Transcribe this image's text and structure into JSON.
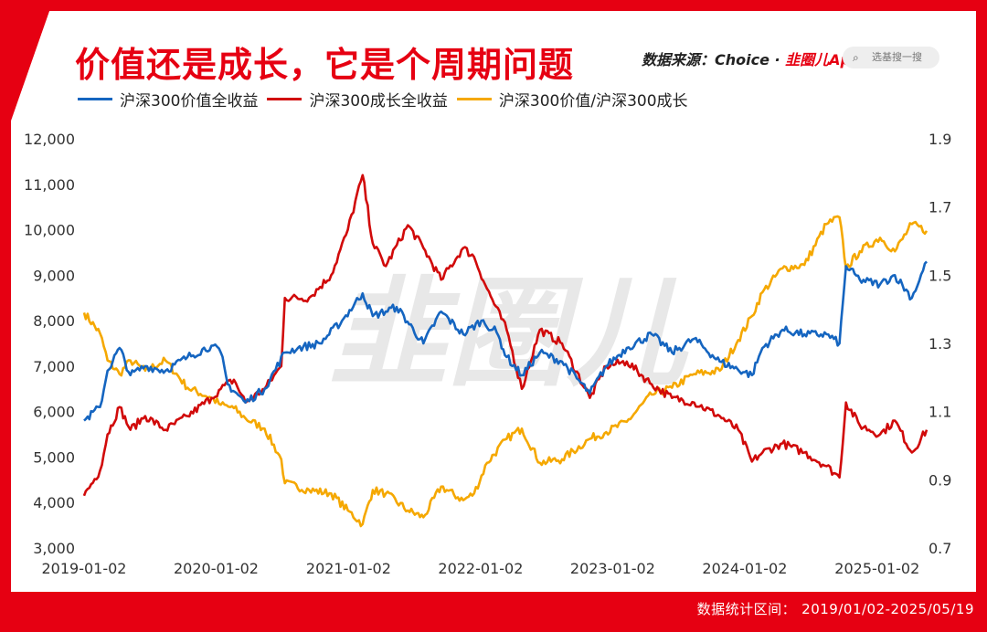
{
  "header": {
    "title": "价值还是成长，它是个周期问题",
    "source_prefix": "数据来源：Choice · ",
    "brand": "韭圈儿App",
    "search_placeholder": "选基搜一搜"
  },
  "footer": {
    "label": "数据统计区间：",
    "range": "2019/01/02-2025/05/19"
  },
  "watermark": "韭圈儿",
  "colors": {
    "background": "#e60012",
    "value_series": "#1565c0",
    "growth_series": "#d10a0a",
    "ratio_series": "#f5a800"
  },
  "chart_data": {
    "type": "line",
    "x_ticks": [
      "2019-01-02",
      "2020-01-02",
      "2021-01-02",
      "2022-01-02",
      "2023-01-02",
      "2024-01-02",
      "2025-01-02"
    ],
    "y_left": {
      "ticks": [
        "3,000",
        "4,000",
        "5,000",
        "6,000",
        "7,000",
        "8,000",
        "9,000",
        "10,000",
        "11,000",
        "12,000"
      ],
      "range": [
        3000,
        12000
      ]
    },
    "y_right": {
      "ticks": [
        "0.7",
        "0.9",
        "1.1",
        "1.3",
        "1.5",
        "1.7",
        "1.9"
      ],
      "range": [
        0.7,
        1.9
      ]
    },
    "series": [
      {
        "name": "沪深300价值全收益",
        "axis": "left",
        "color": "#1565c0",
        "points": [
          [
            "2019-01-02",
            5800
          ],
          [
            "2019-02-15",
            6100
          ],
          [
            "2019-03-08",
            6900
          ],
          [
            "2019-04-10",
            7400
          ],
          [
            "2019-05-10",
            6800
          ],
          [
            "2019-06-20",
            7000
          ],
          [
            "2019-08-15",
            6900
          ],
          [
            "2019-10-15",
            7200
          ],
          [
            "2019-12-20",
            7450
          ],
          [
            "2020-01-15",
            7300
          ],
          [
            "2020-02-03",
            6600
          ],
          [
            "2020-03-23",
            6200
          ],
          [
            "2020-05-15",
            6500
          ],
          [
            "2020-07-10",
            7300
          ],
          [
            "2020-08-15",
            7400
          ],
          [
            "2020-10-15",
            7500
          ],
          [
            "2020-12-15",
            8000
          ],
          [
            "2021-02-10",
            8600
          ],
          [
            "2021-03-10",
            8100
          ],
          [
            "2021-05-15",
            8300
          ],
          [
            "2021-07-28",
            7500
          ],
          [
            "2021-09-15",
            8200
          ],
          [
            "2021-11-15",
            7700
          ],
          [
            "2022-01-04",
            8000
          ],
          [
            "2022-02-15",
            7750
          ],
          [
            "2022-03-15",
            7200
          ],
          [
            "2022-04-26",
            6800
          ],
          [
            "2022-06-15",
            7300
          ],
          [
            "2022-08-15",
            7100
          ],
          [
            "2022-10-31",
            6400
          ],
          [
            "2022-12-15",
            7000
          ],
          [
            "2023-02-10",
            7400
          ],
          [
            "2023-04-20",
            7700
          ],
          [
            "2023-06-15",
            7300
          ],
          [
            "2023-08-15",
            7600
          ],
          [
            "2023-10-25",
            7100
          ],
          [
            "2024-01-22",
            6800
          ],
          [
            "2024-02-20",
            7400
          ],
          [
            "2024-04-15",
            7800
          ],
          [
            "2024-06-15",
            7700
          ],
          [
            "2024-08-15",
            7700
          ],
          [
            "2024-09-20",
            7500
          ],
          [
            "2024-10-08",
            9200
          ],
          [
            "2024-11-15",
            8900
          ],
          [
            "2025-01-10",
            8800
          ],
          [
            "2025-02-20",
            9000
          ],
          [
            "2025-04-08",
            8500
          ],
          [
            "2025-05-19",
            9300
          ]
        ]
      },
      {
        "name": "沪深300成长全收益",
        "axis": "left",
        "color": "#d10a0a",
        "points": [
          [
            "2019-01-02",
            4150
          ],
          [
            "2019-02-15",
            4700
          ],
          [
            "2019-03-08",
            5500
          ],
          [
            "2019-04-10",
            6100
          ],
          [
            "2019-05-10",
            5600
          ],
          [
            "2019-06-20",
            5900
          ],
          [
            "2019-08-15",
            5600
          ],
          [
            "2019-10-15",
            5900
          ],
          [
            "2019-12-20",
            6300
          ],
          [
            "2020-01-15",
            6500
          ],
          [
            "2020-02-20",
            6700
          ],
          [
            "2020-03-23",
            6200
          ],
          [
            "2020-05-15",
            6500
          ],
          [
            "2020-06-30",
            7000
          ],
          [
            "2020-07-10",
            8500
          ],
          [
            "2020-09-15",
            8500
          ],
          [
            "2020-11-15",
            9000
          ],
          [
            "2020-12-31",
            10000
          ],
          [
            "2021-02-10",
            11200
          ],
          [
            "2021-03-10",
            9700
          ],
          [
            "2021-04-15",
            9200
          ],
          [
            "2021-06-15",
            10100
          ],
          [
            "2021-07-28",
            9600
          ],
          [
            "2021-09-15",
            8900
          ],
          [
            "2021-11-15",
            9600
          ],
          [
            "2021-12-15",
            9400
          ],
          [
            "2022-01-20",
            8700
          ],
          [
            "2022-03-15",
            7800
          ],
          [
            "2022-04-26",
            6500
          ],
          [
            "2022-06-15",
            7800
          ],
          [
            "2022-08-15",
            7500
          ],
          [
            "2022-10-31",
            6300
          ],
          [
            "2022-12-15",
            7000
          ],
          [
            "2023-02-10",
            7100
          ],
          [
            "2023-04-20",
            6600
          ],
          [
            "2023-06-15",
            6300
          ],
          [
            "2023-08-15",
            6200
          ],
          [
            "2023-10-25",
            5900
          ],
          [
            "2023-12-15",
            5600
          ],
          [
            "2024-01-22",
            4900
          ],
          [
            "2024-02-20",
            5100
          ],
          [
            "2024-04-15",
            5300
          ],
          [
            "2024-06-15",
            5100
          ],
          [
            "2024-08-15",
            4800
          ],
          [
            "2024-09-20",
            4550
          ],
          [
            "2024-10-08",
            6200
          ],
          [
            "2024-11-15",
            5700
          ],
          [
            "2025-01-10",
            5500
          ],
          [
            "2025-02-20",
            5800
          ],
          [
            "2025-04-08",
            5100
          ],
          [
            "2025-05-19",
            5600
          ]
        ]
      },
      {
        "name": "沪深300价值/沪深300成长",
        "axis": "right",
        "color": "#f5a800",
        "points": [
          [
            "2019-01-02",
            1.39
          ],
          [
            "2019-02-15",
            1.33
          ],
          [
            "2019-03-08",
            1.25
          ],
          [
            "2019-04-10",
            1.21
          ],
          [
            "2019-05-10",
            1.25
          ],
          [
            "2019-06-20",
            1.22
          ],
          [
            "2019-08-15",
            1.25
          ],
          [
            "2019-10-15",
            1.17
          ],
          [
            "2019-12-20",
            1.14
          ],
          [
            "2020-01-15",
            1.12
          ],
          [
            "2020-02-20",
            1.11
          ],
          [
            "2020-03-23",
            1.08
          ],
          [
            "2020-05-15",
            1.05
          ],
          [
            "2020-06-30",
            0.96
          ],
          [
            "2020-07-10",
            0.89
          ],
          [
            "2020-09-15",
            0.87
          ],
          [
            "2020-11-15",
            0.86
          ],
          [
            "2020-12-31",
            0.81
          ],
          [
            "2021-02-10",
            0.77
          ],
          [
            "2021-03-10",
            0.87
          ],
          [
            "2021-04-15",
            0.86
          ],
          [
            "2021-06-15",
            0.81
          ],
          [
            "2021-07-28",
            0.79
          ],
          [
            "2021-09-15",
            0.88
          ],
          [
            "2021-11-15",
            0.84
          ],
          [
            "2021-12-15",
            0.86
          ],
          [
            "2022-01-20",
            0.95
          ],
          [
            "2022-03-15",
            1.02
          ],
          [
            "2022-04-26",
            1.05
          ],
          [
            "2022-06-15",
            0.95
          ],
          [
            "2022-08-15",
            0.96
          ],
          [
            "2022-10-31",
            1.02
          ],
          [
            "2022-12-15",
            1.04
          ],
          [
            "2023-02-10",
            1.07
          ],
          [
            "2023-04-20",
            1.15
          ],
          [
            "2023-06-15",
            1.17
          ],
          [
            "2023-08-15",
            1.21
          ],
          [
            "2023-10-25",
            1.22
          ],
          [
            "2023-12-15",
            1.31
          ],
          [
            "2024-01-22",
            1.38
          ],
          [
            "2024-02-20",
            1.45
          ],
          [
            "2024-04-15",
            1.52
          ],
          [
            "2024-06-15",
            1.53
          ],
          [
            "2024-08-15",
            1.65
          ],
          [
            "2024-09-20",
            1.67
          ],
          [
            "2024-10-08",
            1.52
          ],
          [
            "2024-11-15",
            1.57
          ],
          [
            "2025-01-10",
            1.61
          ],
          [
            "2025-02-20",
            1.57
          ],
          [
            "2025-04-08",
            1.65
          ],
          [
            "2025-05-19",
            1.63
          ]
        ]
      }
    ]
  }
}
